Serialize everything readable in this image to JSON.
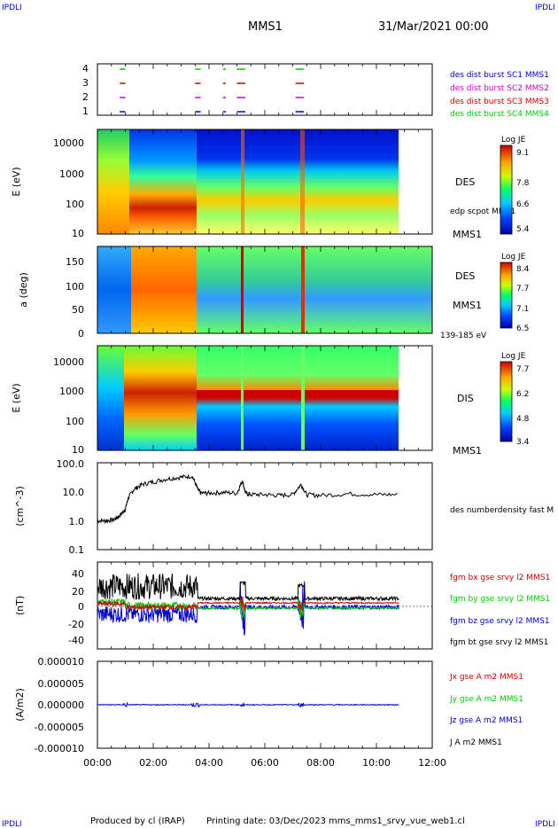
{
  "header": {
    "corner_left_top": "IPDLI",
    "corner_right_top": "IPDLI",
    "title": "MMS1",
    "date": "31/Mar/2021 00:00",
    "corner_left_bottom": "IPDLI",
    "corner_right_bottom": "IPDLI"
  },
  "footer": {
    "produced": "Produced by cl (IRAP)",
    "printing": "Printing date: 03/Dec/2023",
    "file": "mms_mms1_srvy_vue_web1.cl"
  },
  "colors": {
    "blue": "#0000cc",
    "magenta": "#cc00cc",
    "red": "#cc0000",
    "green": "#00cc00",
    "black": "#000000"
  },
  "chart_data": [
    {
      "id": "burst",
      "type": "scatter",
      "y_ticks": [
        "4",
        "3",
        "2",
        "1"
      ],
      "legend": [
        {
          "text": "des dist burst SC1 MMS1",
          "color": "#0000cc"
        },
        {
          "text": "des dist burst SC2 MMS2",
          "color": "#cc00cc"
        },
        {
          "text": "des dist burst SC3 MMS3",
          "color": "#cc0000"
        },
        {
          "text": "des dist burst SC4 MMS4",
          "color": "#00cc00"
        }
      ],
      "intervals_hours": [
        [
          0.8,
          1.0
        ],
        [
          3.5,
          3.7
        ],
        [
          4.5,
          4.6
        ],
        [
          5.0,
          5.3
        ],
        [
          7.1,
          7.4
        ]
      ]
    },
    {
      "id": "des_energy",
      "type": "heatmap",
      "ylabel": "E (eV)",
      "y_ticks": [
        "10000",
        "1000",
        "100",
        "10"
      ],
      "colorbar": {
        "title": "Log JE",
        "ticks": [
          "9.1",
          "7.8",
          "6.6",
          "5.4"
        ]
      },
      "labels": [
        "DES",
        "edp scpot MMS1",
        "MMS1"
      ]
    },
    {
      "id": "des_pitch",
      "type": "heatmap",
      "ylabel": "a (deg)",
      "y_ticks": [
        "150",
        "100",
        "50",
        "0"
      ],
      "colorbar": {
        "title": "Log JE",
        "ticks": [
          "8.4",
          "7.7",
          "7.1",
          "6.5"
        ]
      },
      "labels": [
        "DES",
        "MMS1",
        "139-185 eV"
      ]
    },
    {
      "id": "dis_energy",
      "type": "heatmap",
      "ylabel": "E (eV)",
      "y_ticks": [
        "10000",
        "1000",
        "100",
        "10"
      ],
      "colorbar": {
        "title": "Log JE",
        "ticks": [
          "7.7",
          "6.2",
          "4.8",
          "3.4"
        ]
      },
      "labels": [
        "DIS",
        "MMS1"
      ]
    },
    {
      "id": "density",
      "type": "line",
      "ylabel": "(cm^-3)",
      "y_ticks": [
        "100.0",
        "10.0",
        "1.0",
        "0.1"
      ],
      "ylim": [
        0.1,
        100
      ],
      "legend": [
        {
          "text": "des numberdensity fast M",
          "color": "#000000"
        }
      ],
      "x": [
        0,
        0.3,
        0.6,
        0.8,
        1.0,
        1.1,
        1.3,
        1.6,
        2.0,
        2.5,
        3.0,
        3.4,
        3.6,
        3.7,
        4.0,
        4.5,
        5.0,
        5.2,
        5.3,
        5.5,
        6.0,
        6.5,
        7.0,
        7.3,
        7.5,
        8.0,
        9.0,
        10.0,
        10.8
      ],
      "y": [
        1.0,
        1.0,
        1.1,
        1.5,
        2.5,
        6.0,
        12,
        18,
        22,
        28,
        32,
        35,
        12,
        9,
        9,
        9.5,
        9,
        25,
        9,
        8,
        8,
        7.5,
        8,
        18,
        8,
        7.5,
        8.5,
        8,
        8
      ]
    },
    {
      "id": "fgm",
      "type": "line",
      "ylabel": "(nT)",
      "y_ticks": [
        "40",
        "20",
        "0",
        "-20",
        "-40"
      ],
      "ylim": [
        -50,
        50
      ],
      "legend": [
        {
          "text": "fgm bx gse srvy l2 MMS1",
          "color": "#cc0000"
        },
        {
          "text": "fgm by gse srvy l2 MMS1",
          "color": "#00cc00"
        },
        {
          "text": "fgm bz gse srvy l2 MMS1",
          "color": "#0000cc"
        },
        {
          "text": "fgm bt gse srvy l2 MMS1",
          "color": "#000000"
        }
      ]
    },
    {
      "id": "current",
      "type": "line",
      "ylabel": "(A/m2)",
      "y_ticks": [
        "0.000010",
        "0.000005",
        "0.000000",
        "-0.000005",
        "-0.000010"
      ],
      "ylim": [
        -1e-05,
        1e-05
      ],
      "legend": [
        {
          "text": "Jx gse A m2 MMS1",
          "color": "#cc0000"
        },
        {
          "text": "Jy gse A m2 MMS1",
          "color": "#00cc00"
        },
        {
          "text": "Jz gse A m2 MMS1",
          "color": "#0000cc"
        },
        {
          "text": "J A m2 MMS1",
          "color": "#000000"
        }
      ]
    }
  ],
  "x_axis": {
    "ticks": [
      "00:00",
      "02:00",
      "04:00",
      "06:00",
      "08:00",
      "10:00",
      "12:00"
    ],
    "range_hours": [
      0,
      12
    ]
  }
}
